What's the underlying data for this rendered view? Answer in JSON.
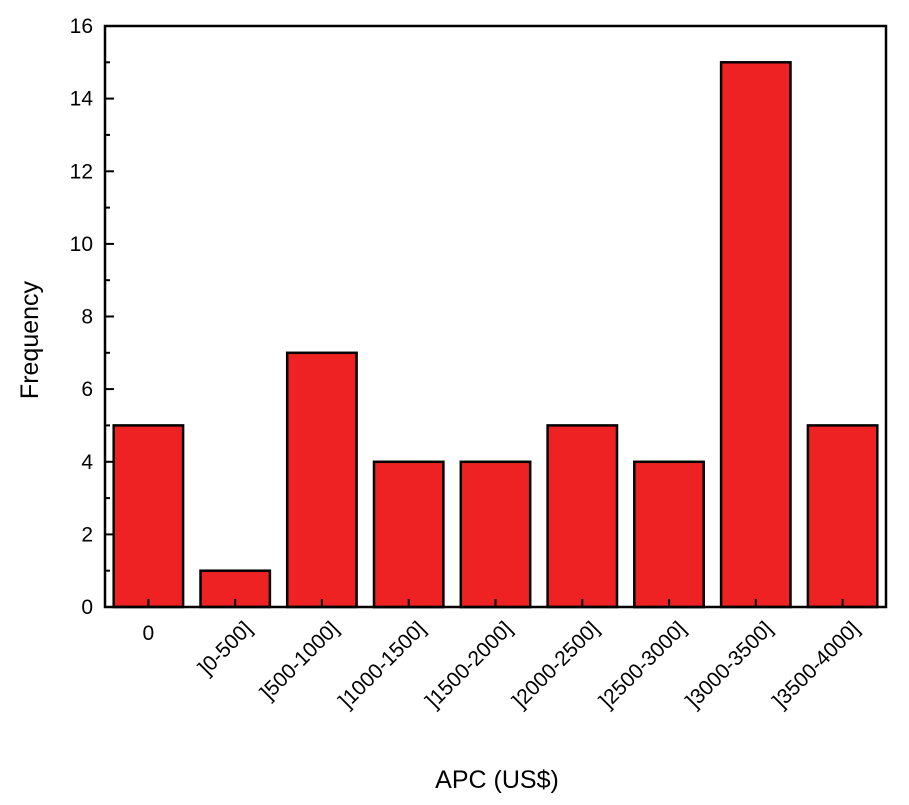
{
  "chart_data": {
    "type": "bar",
    "categories": [
      "0",
      "]0-500]",
      "]500-1000]",
      "]1000-1500]",
      "]1500-2000]",
      "]2000-2500]",
      "]2500-3000]",
      "]3000-3500]",
      "]3500-4000]"
    ],
    "values": [
      5,
      1,
      7,
      4,
      4,
      5,
      4,
      15,
      5
    ],
    "xlabel": "APC (US$)",
    "ylabel": "Frequency",
    "ylim": [
      0,
      16
    ],
    "yticks": [
      "0",
      "2",
      "4",
      "6",
      "8",
      "10",
      "12",
      "14",
      "16"
    ],
    "bar_color": "#ee2222",
    "grid": false,
    "legend": "none"
  }
}
